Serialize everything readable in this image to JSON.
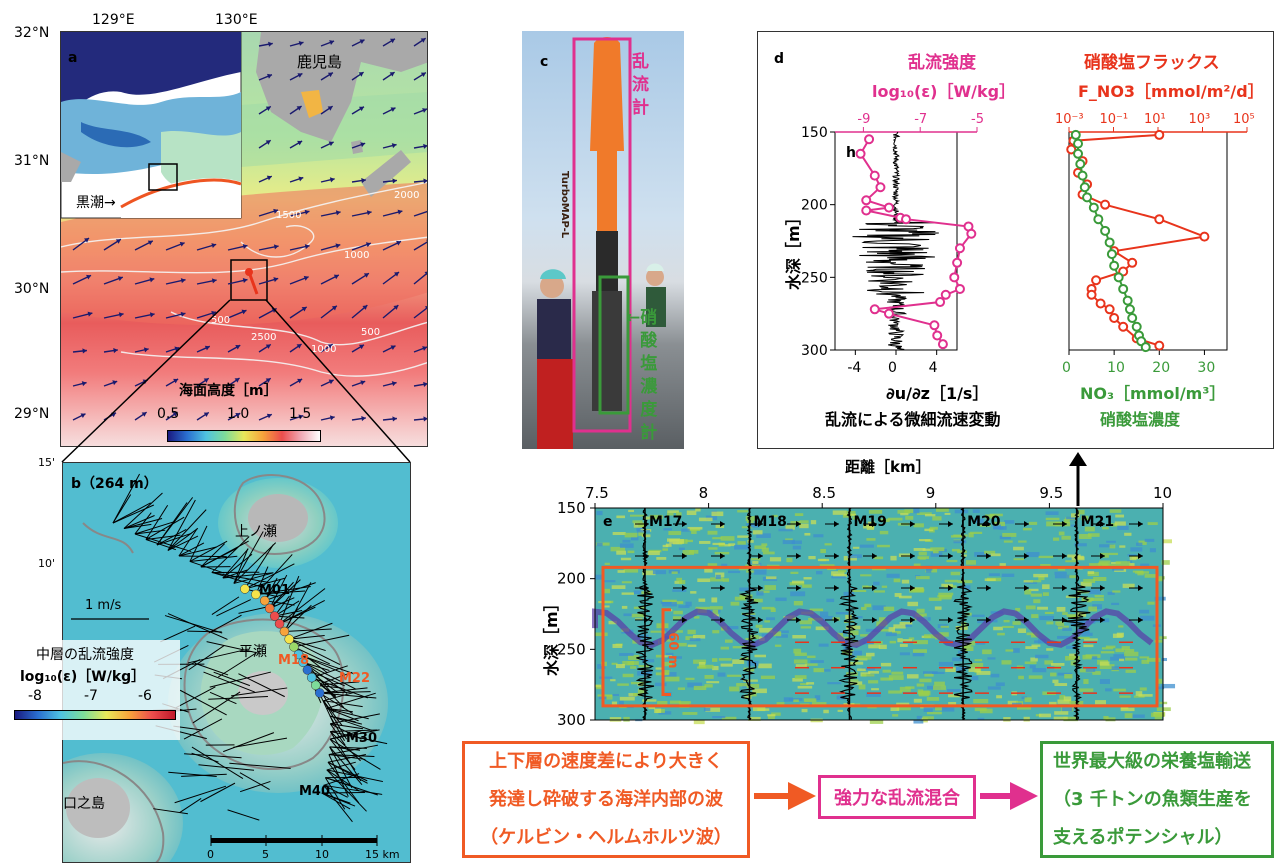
{
  "panel_a": {
    "label": "a",
    "lon_ticks": [
      "129°E",
      "130°E"
    ],
    "lat_ticks": [
      "32°N",
      "31°N",
      "30°N",
      "29°N"
    ],
    "place_kagoshima": "鹿児島",
    "kuroshio_label": "黒潮→",
    "contours": [
      "1500",
      "2000",
      "1000",
      "500",
      "2500",
      "1000",
      "500"
    ],
    "colorbar_title": "海面高度［m］",
    "colorbar_ticks": [
      "0.5",
      "1.0",
      "1.5"
    ]
  },
  "panel_b": {
    "label": "b（264 m）",
    "lat_ticks": [
      "15'",
      "10'"
    ],
    "place_kaminose": "上ノ瀬",
    "place_hirase": "平瀬",
    "place_kuchinoshima": "口之島",
    "scale_arrow": "1 m/s",
    "stations": [
      "M01",
      "M18",
      "M22",
      "M30",
      "M40"
    ],
    "legend_title": "中層の乱流強度",
    "legend_unit": "log₁₀(ε)［W/kg］",
    "legend_ticks": [
      "-8",
      "-7",
      "-6"
    ],
    "scale_ticks": [
      "0",
      "5",
      "10",
      "15 km"
    ]
  },
  "panel_c": {
    "label": "c",
    "instrument_name": "TurboMAP-L",
    "turbulence_meter": [
      "乱",
      "流",
      "計"
    ],
    "nitrate_meter": [
      "←硝",
      "酸",
      "塩",
      "濃",
      "度",
      "計"
    ]
  },
  "panel_d": {
    "label": "d",
    "sub_label": "h",
    "left_title": "乱流強度",
    "left_unit": "log₁₀(ε)［W/kg］",
    "left_top_ticks": [
      "-9",
      "-7",
      "-5"
    ],
    "right_title": "硝酸塩フラックス",
    "right_unit": "F_NO3［mmol/m²/d］",
    "right_top_ticks": [
      "10⁻³",
      "10⁻¹",
      "10¹",
      "10³",
      "10⁵"
    ],
    "y_label": "水深［m］",
    "y_ticks": [
      "150",
      "200",
      "250",
      "300"
    ],
    "left_bottom_ticks": [
      "-4",
      "0",
      "4"
    ],
    "left_xlabel": "∂u/∂z［1/s］",
    "left_caption": "乱流による微細流速変動",
    "right_bottom_ticks": [
      "0",
      "10",
      "20",
      "30"
    ],
    "right_xlabel": "NO₃［mmol/m³］",
    "right_caption": "硝酸塩濃度"
  },
  "panel_e": {
    "label": "e",
    "x_title": "距離［km］",
    "x_ticks": [
      "7.5",
      "8",
      "8.5",
      "9",
      "9.5",
      "10"
    ],
    "y_label": "水深［m］",
    "y_ticks": [
      "150",
      "200",
      "250",
      "300"
    ],
    "stations": [
      "M17",
      "M18",
      "M19",
      "M20",
      "M21"
    ],
    "bracket": "60 m"
  },
  "flow": {
    "box1": [
      "上下層の速度差により大きく",
      "発達し砕破する海洋内部の波",
      "（ケルビン・ヘルムホルツ波）"
    ],
    "box2": "強力な乱流混合",
    "box3": [
      "世界最大級の栄養塩輸送",
      "（3 千トンの魚類生産を",
      "支えるポテンシャル）"
    ]
  },
  "colors": {
    "magenta": "#e0308e",
    "red": "#e8341c",
    "green": "#3a9a3a",
    "orange_red": "#f05a24",
    "arrow_navy": "#1a1a6e"
  },
  "chart_data": [
    {
      "type": "line",
      "title": "乱流強度",
      "xlabel": "log₁₀(ε)［W/kg］",
      "ylabel": "水深［m］",
      "xlim": [
        -10,
        -5
      ],
      "ylim": [
        300,
        150
      ],
      "series": [
        {
          "name": "乱流強度",
          "x": [
            -8.8,
            -9.1,
            -8.6,
            -8.4,
            -8.9,
            -8.1,
            -8.9,
            -7.7,
            -7.5,
            -5.3,
            -5.2,
            -5.6,
            -5.7,
            -5.8,
            -5.6,
            -6.1,
            -6.3,
            -8.6,
            -8.1,
            -6.5,
            -6.4,
            -6.2
          ],
          "y": [
            155,
            165,
            180,
            188,
            197,
            202,
            204,
            209,
            210,
            215,
            220,
            230,
            240,
            250,
            258,
            262,
            267,
            272,
            275,
            283,
            290,
            296
          ]
        }
      ]
    },
    {
      "type": "line",
      "title": "硝酸塩フラックス",
      "xlabel": "F_NO3［mmol/m²/d］",
      "ylabel": "水深［m］",
      "ylim": [
        300,
        150
      ],
      "series": [
        {
          "name": "硝酸塩フラックス",
          "x": [
            20,
            1,
            0.5,
            3,
            2,
            4,
            3,
            8,
            20,
            30,
            10,
            14,
            12,
            6,
            5,
            5,
            7,
            9,
            10,
            12,
            15,
            20
          ],
          "y": [
            152,
            156,
            162,
            170,
            178,
            186,
            193,
            200,
            210,
            222,
            232,
            240,
            246,
            252,
            258,
            262,
            268,
            272,
            278,
            284,
            292,
            297
          ]
        },
        {
          "name": "硝酸塩濃度",
          "x": [
            1.5,
            2,
            2,
            2.5,
            3,
            3.5,
            4,
            5.5,
            6.5,
            8,
            9,
            9.5,
            10,
            11,
            12,
            13,
            13.5,
            14,
            15,
            15.5,
            16,
            17
          ],
          "y": [
            152,
            158,
            165,
            172,
            180,
            188,
            195,
            202,
            210,
            218,
            226,
            234,
            242,
            250,
            258,
            266,
            272,
            278,
            284,
            290,
            294,
            298
          ]
        }
      ]
    }
  ]
}
